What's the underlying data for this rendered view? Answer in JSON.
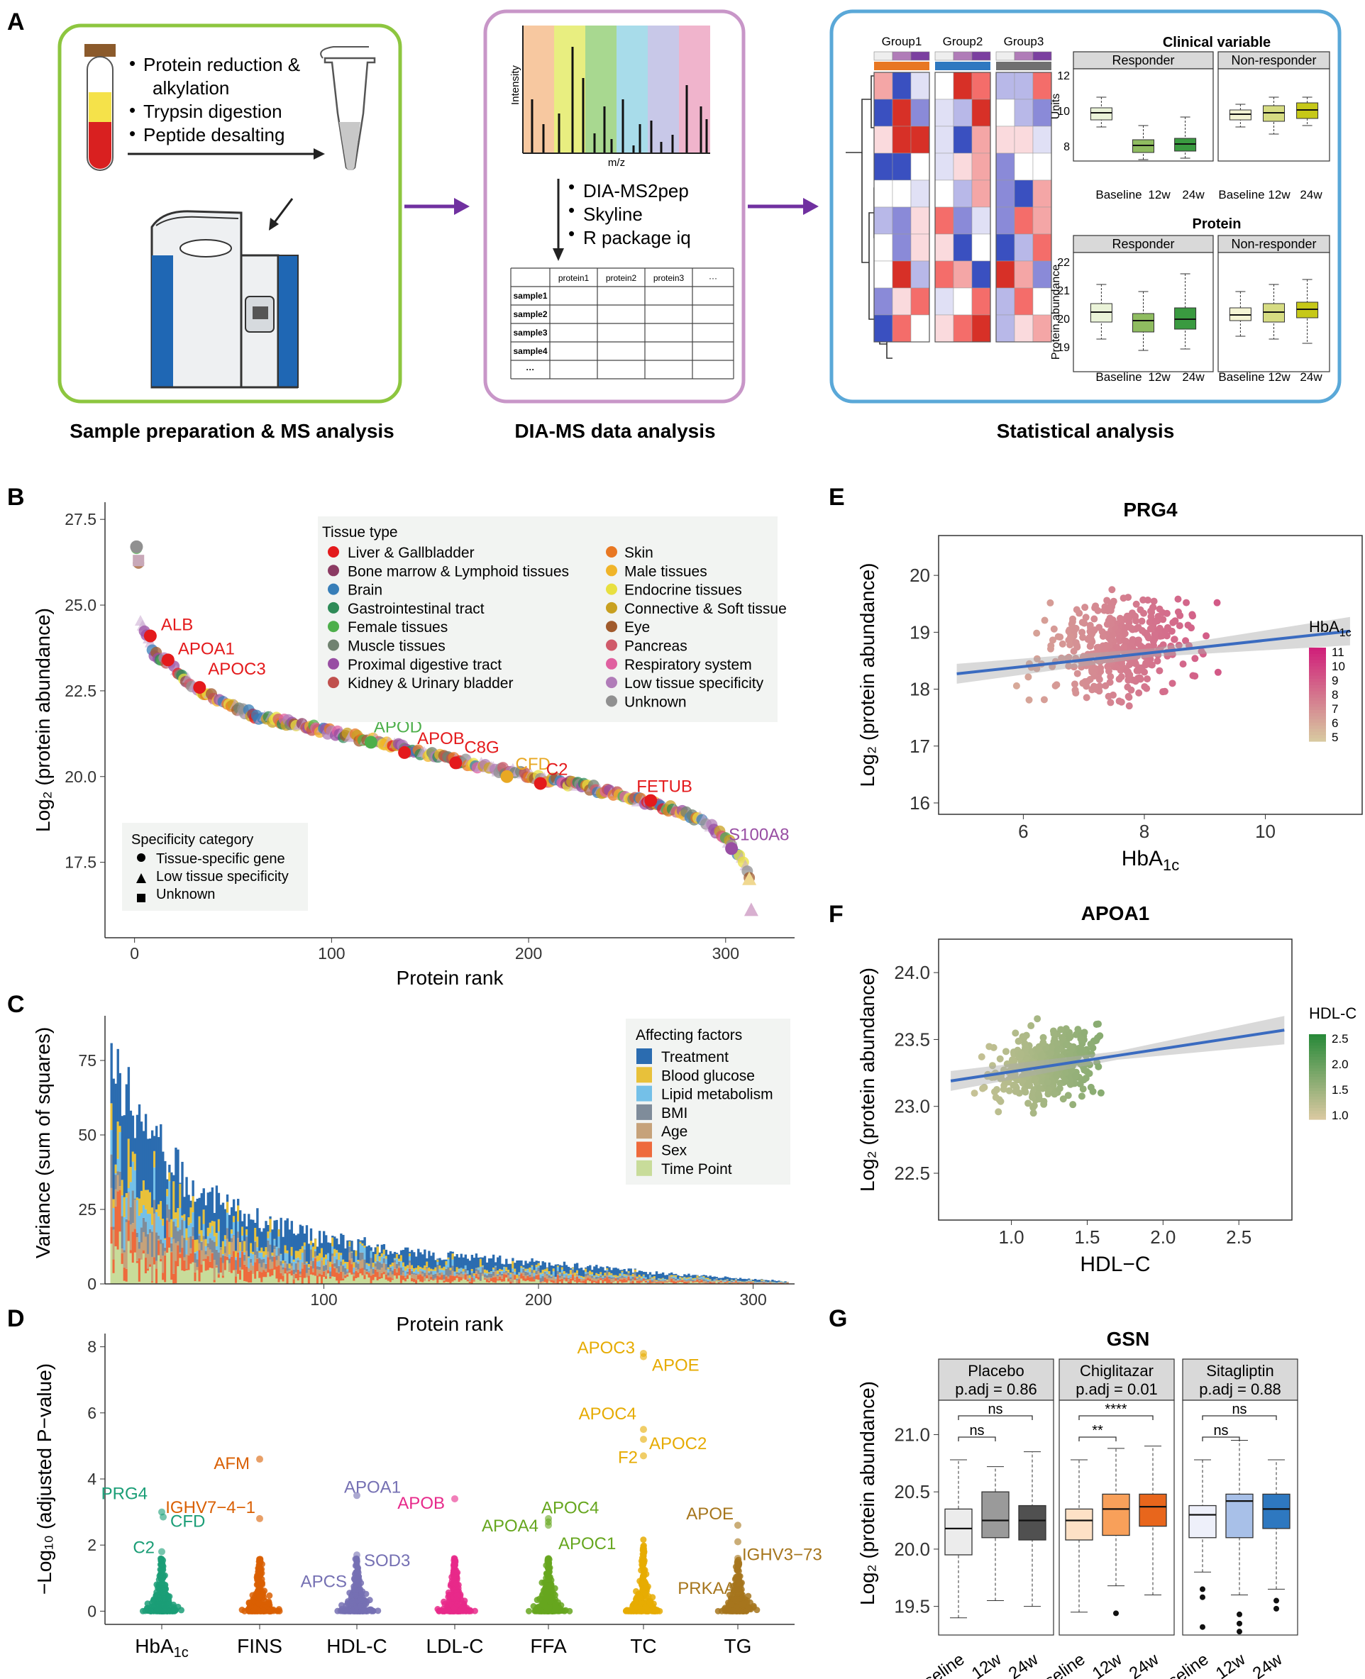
{
  "panel_labels": [
    "A",
    "B",
    "C",
    "D",
    "E",
    "F",
    "G"
  ],
  "panel_a": {
    "box1": {
      "steps": [
        "Protein reduction &",
        "alkylation",
        "Trypsin digestion",
        "Peptide desalting"
      ],
      "caption": "Sample preparation & MS analysis"
    },
    "box2": {
      "spectrum_ylabel": "Intensity",
      "spectrum_xlabel": "m/z",
      "steps": [
        "DIA-MS2pep",
        "Skyline",
        "R package iq"
      ],
      "table_headers": [
        "protein1",
        "protein2",
        "protein3",
        "···"
      ],
      "table_rows": [
        "sample1",
        "sample2",
        "sample3",
        "sample4",
        "···"
      ],
      "caption": "DIA-MS data analysis"
    },
    "box3": {
      "groups": [
        "Group1",
        "Group2",
        "Group3"
      ],
      "clinical_title": "Clinical variable",
      "protein_title": "Protein",
      "strip_labels": [
        "Responder",
        "Non-responder"
      ],
      "x_labels": [
        "Baseline",
        "12w",
        "24w"
      ],
      "clinical_ylabel": "Units",
      "clinical_yticks": [
        "12",
        "10",
        "8"
      ],
      "protein_ylabel": "Protein abundance",
      "protein_yticks": [
        "22",
        "21",
        "20",
        "19"
      ],
      "caption": "Statistical analysis"
    }
  },
  "chart_data": [
    {
      "id": "B",
      "type": "scatter",
      "xlabel": "Protein rank",
      "ylabel": "Log₂ (protein abundance)",
      "xlim": [
        -15,
        335
      ],
      "ylim": [
        15.3,
        28.0
      ],
      "xticks": [
        "0",
        "100",
        "200",
        "300"
      ],
      "yticks": [
        "17.5",
        "20.0",
        "22.5",
        "25.0",
        "27.5"
      ],
      "curve": [
        [
          1,
          26.7
        ],
        [
          2,
          26.3
        ],
        [
          3,
          24.6
        ],
        [
          6,
          24.1
        ],
        [
          10,
          23.6
        ],
        [
          18,
          23.3
        ],
        [
          30,
          22.6
        ],
        [
          60,
          21.8
        ],
        [
          100,
          21.3
        ],
        [
          140,
          20.8
        ],
        [
          180,
          20.25
        ],
        [
          230,
          19.7
        ],
        [
          270,
          19.1
        ],
        [
          290,
          18.7
        ],
        [
          300,
          18.2
        ],
        [
          306,
          17.8
        ],
        [
          309,
          17.5
        ],
        [
          312,
          17.0
        ],
        [
          313,
          16.1
        ]
      ],
      "labeled_points": [
        {
          "label": "ALB",
          "x": 8,
          "y": 24.1,
          "color": "#e41a1c"
        },
        {
          "label": "APOA1",
          "x": 17,
          "y": 23.4,
          "color": "#e41a1c"
        },
        {
          "label": "APOC3",
          "x": 33,
          "y": 22.6,
          "color": "#e41a1c"
        },
        {
          "label": "APOD",
          "x": 120,
          "y": 21.0,
          "color": "#4daf4a"
        },
        {
          "label": "APOB",
          "x": 137,
          "y": 20.7,
          "color": "#e41a1c"
        },
        {
          "label": "C8G",
          "x": 163,
          "y": 20.4,
          "color": "#e41a1c"
        },
        {
          "label": "CFD",
          "x": 189,
          "y": 20.0,
          "color": "#e8a823"
        },
        {
          "label": "C2",
          "x": 206,
          "y": 19.8,
          "color": "#e41a1c"
        },
        {
          "label": "FETUB",
          "x": 262,
          "y": 19.3,
          "color": "#e41a1c"
        },
        {
          "label": "S100A8",
          "x": 303,
          "y": 17.9,
          "color": "#984ea3"
        }
      ],
      "legend_title": "Tissue type",
      "tissues_col1": [
        {
          "name": "Liver & Gallbladder",
          "color": "#e31a1c"
        },
        {
          "name": "Bone marrow & Lymphoid tissues",
          "color": "#8b3a62"
        },
        {
          "name": "Brain",
          "color": "#377eb8"
        },
        {
          "name": "Gastrointestinal tract",
          "color": "#2e8b57"
        },
        {
          "name": "Female tissues",
          "color": "#4daf4a"
        },
        {
          "name": "Muscle tissues",
          "color": "#708270"
        },
        {
          "name": "Proximal digestive tract",
          "color": "#984ea3"
        },
        {
          "name": "Kidney & Urinary bladder",
          "color": "#c0504d"
        }
      ],
      "tissues_col2": [
        {
          "name": "Skin",
          "color": "#e87722"
        },
        {
          "name": "Male tissues",
          "color": "#f0b428"
        },
        {
          "name": "Endocrine tissues",
          "color": "#e8e040"
        },
        {
          "name": "Connective & Soft tissue",
          "color": "#c8a020"
        },
        {
          "name": "Eye",
          "color": "#a05a2c"
        },
        {
          "name": "Pancreas",
          "color": "#d05a6a"
        },
        {
          "name": "Respiratory system",
          "color": "#e060a0"
        },
        {
          "name": "Low tissue specificity",
          "color": "#b07cb8"
        },
        {
          "name": "Unknown",
          "color": "#909090"
        }
      ],
      "specificity_title": "Specificity category",
      "specificity": [
        "Tissue-specific gene",
        "Low tissue specificity",
        "Unknown"
      ]
    },
    {
      "id": "C",
      "type": "bar",
      "xlabel": "Protein rank",
      "ylabel": "Variance (sum of squares)",
      "xlim": [
        0,
        318
      ],
      "ylim": [
        0,
        90
      ],
      "xticks": [
        "100",
        "200",
        "300"
      ],
      "yticks": [
        "0",
        "25",
        "50",
        "75"
      ],
      "legend_title": "Affecting factors",
      "factors": [
        {
          "name": "Treatment",
          "color": "#2b6cb0"
        },
        {
          "name": "Blood glucose",
          "color": "#e8c13a"
        },
        {
          "name": "Lipid metabolism",
          "color": "#74c0e8"
        },
        {
          "name": "BMI",
          "color": "#7f8c9a"
        },
        {
          "name": "Age",
          "color": "#c6a27a"
        },
        {
          "name": "Sex",
          "color": "#ee6a3c"
        },
        {
          "name": "Time Point",
          "color": "#c8dc9a"
        }
      ],
      "profile": [
        [
          1,
          90
        ],
        [
          2,
          78
        ],
        [
          5,
          70
        ],
        [
          10,
          60
        ],
        [
          20,
          48
        ],
        [
          40,
          32
        ],
        [
          70,
          21
        ],
        [
          100,
          15
        ],
        [
          150,
          10
        ],
        [
          200,
          7
        ],
        [
          250,
          4
        ],
        [
          290,
          2
        ],
        [
          318,
          0.8
        ]
      ]
    },
    {
      "id": "D",
      "type": "scatter",
      "ylabel": "−Log₁₀ (adjusted P−value)",
      "ylim": [
        -0.4,
        8.4
      ],
      "yticks": [
        "0",
        "2",
        "4",
        "6",
        "8"
      ],
      "categories": [
        {
          "name": "HbA1c",
          "color": "#1b9e77"
        },
        {
          "name": "FINS",
          "color": "#d95f02"
        },
        {
          "name": "HDL-C",
          "color": "#7570b3"
        },
        {
          "name": "LDL-C",
          "color": "#e7298a"
        },
        {
          "name": "FFA",
          "color": "#66a61e"
        },
        {
          "name": "TC",
          "color": "#e6ab02"
        },
        {
          "name": "TG",
          "color": "#a6761d"
        }
      ],
      "labels": [
        {
          "label": "PRG4",
          "cat": 0,
          "y": 3.0
        },
        {
          "label": "CFD",
          "cat": 0,
          "y": 2.85
        },
        {
          "label": "C2",
          "cat": 0,
          "y": 1.8
        },
        {
          "label": "AFM",
          "cat": 1,
          "y": 4.6
        },
        {
          "label": "IGHV7−4−1",
          "cat": 1,
          "y": 2.8
        },
        {
          "label": "APOA1",
          "cat": 2,
          "y": 3.5
        },
        {
          "label": "SOD3",
          "cat": 2,
          "y": 1.7
        },
        {
          "label": "APCS",
          "cat": 2,
          "y": 1.5
        },
        {
          "label": "APOB",
          "cat": 3,
          "y": 3.4
        },
        {
          "label": "APOA4",
          "cat": 4,
          "y": 2.8
        },
        {
          "label": "APOC4",
          "cat": 4,
          "y": 2.7
        },
        {
          "label": "APOC1",
          "cat": 4,
          "y": 2.6
        },
        {
          "label": "APOC3",
          "cat": 5,
          "y": 7.8
        },
        {
          "label": "APOE",
          "cat": 5,
          "y": 7.7
        },
        {
          "label": "APOC4",
          "cat": 5,
          "y": 5.5
        },
        {
          "label": "APOC2",
          "cat": 5,
          "y": 5.2
        },
        {
          "label": "F2",
          "cat": 5,
          "y": 4.7
        },
        {
          "label": "APOE",
          "cat": 6,
          "y": 2.6
        },
        {
          "label": "IGHV3−73",
          "cat": 6,
          "y": 2.1
        },
        {
          "label": "PRKAA1",
          "cat": 6,
          "y": 1.6
        }
      ]
    },
    {
      "id": "E",
      "type": "scatter",
      "title": "PRG4",
      "xlabel": "HbA",
      "xlabel_sub": "1c",
      "ylabel": "Log₂ (protein abundance)",
      "xlim": [
        4.6,
        11.6
      ],
      "ylim": [
        15.8,
        20.7
      ],
      "xticks": [
        "6",
        "8",
        "10"
      ],
      "yticks": [
        "16",
        "17",
        "18",
        "19",
        "20"
      ],
      "fit": {
        "x": [
          4.9,
          11.4
        ],
        "y": [
          18.27,
          19.02
        ]
      },
      "colorbar_title": "HbA",
      "colorbar_sub": "1c",
      "colorbar_ticks": [
        "11",
        "10",
        "9",
        "8",
        "7",
        "6",
        "5"
      ],
      "color_low": "#d8c8a0",
      "color_high": "#d0207a"
    },
    {
      "id": "F",
      "type": "scatter",
      "title": "APOA1",
      "xlabel": "HDL−C",
      "ylabel": "Log₂ (protein abundance)",
      "xlim": [
        0.52,
        2.85
      ],
      "ylim": [
        22.15,
        24.25
      ],
      "xticks": [
        "1.0",
        "1.5",
        "2.0",
        "2.5"
      ],
      "yticks": [
        "22.5",
        "23.0",
        "23.5",
        "24.0"
      ],
      "fit": {
        "x": [
          0.6,
          2.8
        ],
        "y": [
          23.19,
          23.57
        ]
      },
      "colorbar_title": "HDL-C",
      "colorbar_ticks": [
        "2.5",
        "2.0",
        "1.5",
        "1.0"
      ],
      "color_low": "#d8c8a0",
      "color_high": "#2a8a3a"
    },
    {
      "id": "G",
      "type": "box",
      "title": "GSN",
      "ylabel": "Log₂ (protein abundance)",
      "ylim": [
        19.25,
        21.3
      ],
      "yticks": [
        "19.5",
        "20.0",
        "20.5",
        "21.0"
      ],
      "categories": [
        "Baseline",
        "12w",
        "24w"
      ],
      "panels": [
        {
          "name": "Placebo",
          "padj": "p.adj =  0.86",
          "sig_top": "ns",
          "sig_mid": "ns",
          "colors": [
            "#ececec",
            "#9a9a9a",
            "#505050"
          ],
          "boxes": [
            [
              19.4,
              19.95,
              20.18,
              20.35,
              20.78
            ],
            [
              19.55,
              20.1,
              20.25,
              20.5,
              20.72
            ],
            [
              19.5,
              20.08,
              20.25,
              20.38,
              20.85
            ]
          ]
        },
        {
          "name": "Chiglitazar",
          "padj": "p.adj =  0.01",
          "sig_top": "****",
          "sig_mid": "**",
          "colors": [
            "#fde1c6",
            "#f8a05a",
            "#e8661c"
          ],
          "boxes": [
            [
              19.45,
              20.08,
              20.25,
              20.35,
              20.78
            ],
            [
              19.68,
              20.12,
              20.35,
              20.48,
              20.88
            ],
            [
              19.6,
              20.2,
              20.37,
              20.48,
              20.9
            ]
          ]
        },
        {
          "name": "Sitagliptin",
          "padj": "p.adj =  0.88",
          "sig_top": "ns",
          "sig_mid": "ns",
          "colors": [
            "#eef0fa",
            "#a8c0e8",
            "#2e78c0"
          ],
          "boxes": [
            [
              19.8,
              20.1,
              20.3,
              20.38,
              20.78
            ],
            [
              19.6,
              20.1,
              20.42,
              20.48,
              20.95
            ],
            [
              19.65,
              20.18,
              20.35,
              20.48,
              20.78
            ]
          ]
        }
      ]
    }
  ]
}
